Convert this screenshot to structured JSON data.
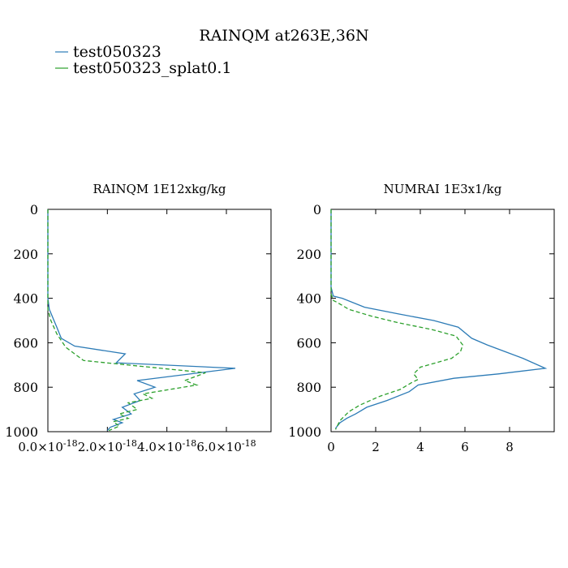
{
  "title": "RAINQM at263E,36N",
  "legend": [
    {
      "label": "test050323",
      "color": "#2c7bb6",
      "dash": "solid"
    },
    {
      "label": "test050323_splat0.1",
      "color": "#2ca02c",
      "dash": "dashed"
    }
  ],
  "chart_data": [
    {
      "type": "line",
      "title": "RAINQM  1E12xkg/kg",
      "xlabel": "",
      "ylabel": "",
      "xlim": [
        0,
        7.5
      ],
      "ylim": [
        1000,
        0
      ],
      "xticks": [
        0,
        2,
        4,
        6
      ],
      "xtick_mantissa": [
        "0.0",
        "2.0",
        "4.0",
        "6.0"
      ],
      "xtick_power_base": "×10",
      "xtick_exponent": "-18",
      "yticks": [
        0,
        200,
        400,
        600,
        800,
        1000
      ],
      "ytick_labels": [
        "0",
        "200",
        "400",
        "600",
        "800",
        "1000"
      ],
      "series": [
        {
          "color": "#2c7bb6",
          "dash": "solid",
          "x": [
            0,
            0,
            0.05,
            0.3,
            0.45,
            0.9,
            2.6,
            2.3,
            6.3,
            3.0,
            3.6,
            2.9,
            3.1,
            2.5,
            2.8,
            2.2,
            2.5,
            2.1,
            2.0
          ],
          "y": [
            0,
            400,
            450,
            530,
            580,
            615,
            650,
            690,
            715,
            770,
            800,
            830,
            860,
            890,
            920,
            945,
            960,
            980,
            995
          ]
        },
        {
          "color": "#2ca02c",
          "dash": "dashed",
          "x": [
            0,
            0,
            0.1,
            0.3,
            0.6,
            1.2,
            5.3,
            4.6,
            5.0,
            3.2,
            3.5,
            2.7,
            3.0,
            2.4,
            2.7,
            2.2,
            2.4,
            2.05
          ],
          "y": [
            0,
            450,
            500,
            560,
            620,
            680,
            735,
            770,
            790,
            830,
            850,
            870,
            900,
            920,
            940,
            955,
            975,
            995
          ]
        }
      ]
    },
    {
      "type": "line",
      "title": "NUMRAI  1E3x1/kg",
      "xlabel": "",
      "ylabel": "",
      "xlim": [
        0,
        10
      ],
      "ylim": [
        1000,
        0
      ],
      "xticks": [
        0,
        2,
        4,
        6,
        8
      ],
      "xtick_labels": [
        "0",
        "2",
        "4",
        "6",
        "8"
      ],
      "yticks": [
        0,
        200,
        400,
        600,
        800,
        1000
      ],
      "ytick_labels": [
        "0",
        "200",
        "400",
        "600",
        "800",
        "1000"
      ],
      "series": [
        {
          "color": "#2c7bb6",
          "dash": "solid",
          "x": [
            0,
            0,
            0.1,
            0.5,
            1.5,
            3.0,
            4.6,
            5.7,
            6.3,
            7.0,
            7.8,
            8.6,
            9.6,
            7.5,
            5.5,
            3.9,
            3.5,
            2.5,
            1.6,
            1.1,
            0.7,
            0.4,
            0.2
          ],
          "y": [
            0,
            350,
            390,
            400,
            440,
            470,
            500,
            530,
            580,
            610,
            640,
            670,
            715,
            740,
            760,
            790,
            820,
            860,
            890,
            920,
            940,
            960,
            985
          ]
        },
        {
          "color": "#2ca02c",
          "dash": "dashed",
          "x": [
            0,
            0,
            0.1,
            0.3,
            0.8,
            1.8,
            3.0,
            4.5,
            5.6,
            5.9,
            5.8,
            5.4,
            4.7,
            4.0,
            3.7,
            3.9,
            3.6,
            3.1,
            2.2,
            1.3,
            0.8,
            0.4,
            0.2
          ],
          "y": [
            0,
            380,
            410,
            420,
            450,
            480,
            510,
            540,
            570,
            610,
            640,
            670,
            690,
            710,
            740,
            765,
            780,
            810,
            840,
            880,
            910,
            950,
            990
          ]
        }
      ]
    }
  ]
}
